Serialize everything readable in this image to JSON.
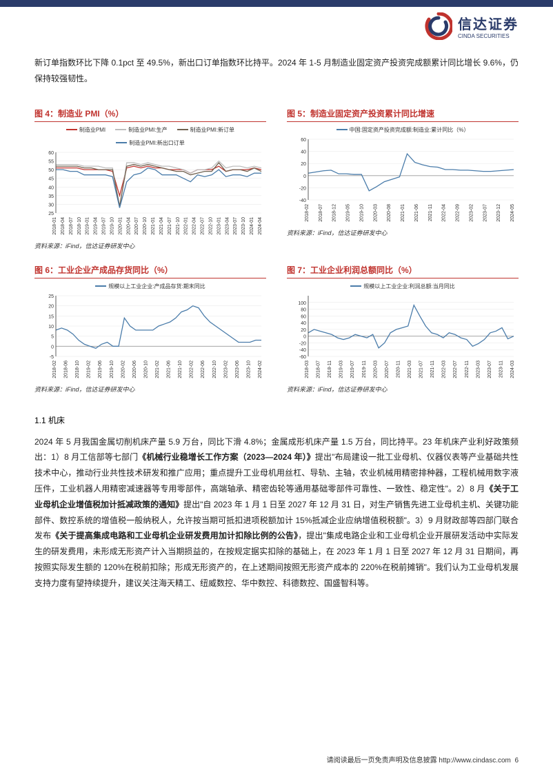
{
  "header": {
    "logo_cn": "信达证券",
    "logo_en": "CINDA SECURITIES"
  },
  "intro_para": "新订单指数环比下降 0.1pct 至 49.5%，新出口订单指数环比持平。2024 年 1-5 月制造业固定资产投资完成额累计同比增长 9.6%，仍保持较强韧性。",
  "charts": {
    "c4": {
      "title": "图 4：制造业 PMI（%）",
      "legend": [
        {
          "label": "制造业PMI",
          "color": "#c0332e"
        },
        {
          "label": "制造业PMI:生产",
          "color": "#bdbdbd"
        },
        {
          "label": "制造业PMI:新订单",
          "color": "#70614f"
        },
        {
          "label": "制造业PMI:新出口订单",
          "color": "#4a7caa"
        }
      ],
      "ylim": [
        25,
        60
      ],
      "ytick_step": 5,
      "x_labels": [
        "2018-01",
        "2018-04",
        "2018-07",
        "2018-10",
        "2019-01",
        "2019-04",
        "2019-07",
        "2019-10",
        "2020-01",
        "2020-04",
        "2020-07",
        "2020-10",
        "2021-01",
        "2021-04",
        "2021-07",
        "2021-10",
        "2022-01",
        "2022-04",
        "2022-07",
        "2022-10",
        "2023-01",
        "2023-04",
        "2023-07",
        "2023-10",
        "2024-01",
        "2024-04"
      ],
      "series": [
        {
          "color": "#c0332e",
          "values": [
            51,
            51,
            51,
            51,
            50,
            50,
            50,
            50,
            49,
            35,
            51,
            52,
            51,
            52,
            51,
            51,
            50,
            50,
            50,
            48,
            50,
            50,
            50,
            52,
            49,
            50,
            50,
            50,
            51,
            50
          ]
        },
        {
          "color": "#bdbdbd",
          "values": [
            53,
            53,
            53,
            53,
            52,
            52,
            52,
            51,
            51,
            28,
            54,
            54,
            53,
            54,
            53,
            52,
            52,
            51,
            50,
            48,
            50,
            50,
            51,
            55,
            51,
            52,
            52,
            51,
            52,
            51
          ]
        },
        {
          "color": "#70614f",
          "values": [
            52,
            52,
            52,
            52,
            51,
            51,
            50,
            50,
            50,
            29,
            52,
            53,
            52,
            53,
            52,
            51,
            50,
            49,
            49,
            47,
            48,
            49,
            49,
            54,
            49,
            50,
            50,
            49,
            51,
            49
          ]
        },
        {
          "color": "#4a7caa",
          "values": [
            50,
            50,
            49,
            49,
            47,
            47,
            47,
            47,
            46,
            28,
            43,
            47,
            48,
            51,
            50,
            47,
            47,
            47,
            45,
            43,
            47,
            46,
            47,
            50,
            46,
            47,
            47,
            46,
            48,
            48
          ]
        }
      ],
      "background_color": "#ffffff",
      "grid_color": "#e6e6e6",
      "axis_fontsize": 7,
      "source": "资料来源：iFind，信达证券研发中心"
    },
    "c5": {
      "title": "图 5：制造业固定资产投资累计同比增速",
      "legend": [
        {
          "label": "中国:固定资产投资完成额:制造业:累计同比（%）",
          "color": "#4a7caa"
        }
      ],
      "ylim": [
        -40,
        60
      ],
      "ytick_step": 20,
      "x_labels": [
        "2018-02",
        "2018-07",
        "2018-12",
        "2019-05",
        "2019-10",
        "2020-03",
        "2020-08",
        "2021-01",
        "2021-06",
        "2021-11",
        "2022-04",
        "2022-09",
        "2023-02",
        "2023-07",
        "2023-12",
        "2024-05"
      ],
      "series": [
        {
          "color": "#4a7caa",
          "values": [
            4,
            6,
            8,
            9,
            3,
            3,
            2,
            2,
            -25,
            -18,
            -10,
            -6,
            -2,
            36,
            22,
            18,
            15,
            14,
            10,
            10,
            9,
            9,
            8,
            7,
            7,
            8,
            9,
            10
          ]
        }
      ],
      "background_color": "#ffffff",
      "grid_color": "#e6e6e6",
      "axis_fontsize": 7,
      "source": "资料来源：iFind，信达证券研发中心"
    },
    "c6": {
      "title": "图 6：工业企业产成品存货同比（%）",
      "legend": [
        {
          "label": "规模以上工业企业:产成品存货:期末同比",
          "color": "#4a7caa"
        }
      ],
      "ylim": [
        -5,
        25
      ],
      "ytick_step": 5,
      "x_labels": [
        "2018-02",
        "2018-06",
        "2018-10",
        "2019-02",
        "2019-06",
        "2019-10",
        "2020-02",
        "2020-06",
        "2020-10",
        "2021-02",
        "2021-06",
        "2021-10",
        "2022-02",
        "2022-06",
        "2022-10",
        "2023-02",
        "2023-06",
        "2023-10",
        "2024-02"
      ],
      "series": [
        {
          "color": "#4a7caa",
          "values": [
            8,
            9,
            8,
            6,
            3,
            1,
            0,
            -1,
            1,
            2,
            0,
            0,
            14,
            10,
            8,
            8,
            8,
            8,
            10,
            11,
            12,
            14,
            17,
            18,
            20,
            19,
            15,
            12,
            10,
            8,
            6,
            4,
            2,
            2,
            2,
            3,
            3
          ]
        }
      ],
      "background_color": "#ffffff",
      "grid_color": "#e6e6e6",
      "axis_fontsize": 7,
      "source": "资料来源：iFind，信达证券研发中心"
    },
    "c7": {
      "title": "图 7：工业企业利润总额同比（%）",
      "legend": [
        {
          "label": "规模以上工业企业:利润总额:当月同比",
          "color": "#4a7caa"
        }
      ],
      "ylim": [
        -60,
        120
      ],
      "ylim2": 100,
      "ytick_values": [
        -60,
        -40,
        -20,
        0,
        20,
        40,
        60,
        80,
        100
      ],
      "x_labels": [
        "2018-03",
        "2018-07",
        "2018-11",
        "2019-03",
        "2019-07",
        "2019-11",
        "2020-03",
        "2020-07",
        "2020-11",
        "2021-03",
        "2021-07",
        "2021-11",
        "2022-03",
        "2022-07",
        "2022-11",
        "2023-03",
        "2023-07",
        "2023-11",
        "2024-03"
      ],
      "series": [
        {
          "color": "#4a7caa",
          "values": [
            10,
            20,
            15,
            10,
            5,
            -5,
            -10,
            -5,
            5,
            0,
            -5,
            5,
            -35,
            -20,
            10,
            20,
            25,
            30,
            92,
            60,
            30,
            10,
            5,
            -5,
            10,
            5,
            -5,
            -10,
            -30,
            -22,
            -10,
            10,
            15,
            25,
            -8,
            0
          ]
        }
      ],
      "background_color": "#ffffff",
      "grid_color": "#e6e6e6",
      "axis_fontsize": 7,
      "source": "资料来源：iFind，信达证券研发中心"
    }
  },
  "section": {
    "num": "1.1 机床",
    "body_parts": [
      {
        "t": "plain",
        "v": "2024 年 5 月我国金属切削机床产量 5.9 万台，同比下滑 4.8%；金属成形机床产量 1.5 万台，同比持平。23 年机床产业利好政策频出：1）8 月工信部等七部门"
      },
      {
        "t": "bold",
        "v": "《机械行业稳增长工作方案（2023—2024 年）》"
      },
      {
        "t": "plain",
        "v": "提出\"布局建设一批工业母机、仪器仪表等产业基础共性技术中心，推动行业共性技术研发和推广应用；重点提升工业母机用丝杠、导轨、主轴，农业机械用精密排种器，工程机械用数字液压件，工业机器人用精密减速器等专用零部件，高端轴承、精密齿轮等通用基础零部件可靠性、一致性、稳定性\"。2）8 月"
      },
      {
        "t": "bold",
        "v": "《关于工业母机企业增值税加计抵减政策的通知》"
      },
      {
        "t": "plain",
        "v": "提出\"自 2023 年 1 月 1 日至 2027 年 12 月 31 日，对生产销售先进工业母机主机、关键功能部件、数控系统的增值税一般纳税人，允许按当期可抵扣进项税额加计 15%抵减企业应纳增值税税额\"。3）9 月财政部等四部门联合发布"
      },
      {
        "t": "bold",
        "v": "《关于提高集成电路和工业母机企业研发费用加计扣除比例的公告》"
      },
      {
        "t": "plain",
        "v": "，提出\"集成电路企业和工业母机企业开展研发活动中实际发生的研发费用，未形成无形资产计入当期损益的，在按规定据实扣除的基础上，在 2023 年 1 月 1 日至 2027 年 12 月 31 日期间，再按照实际发生额的 120%在税前扣除；形成无形资产的，在上述期间按照无形资产成本的 220%在税前摊销\"。我们认为工业母机发展支持力度有望持续提升，建议关注海天精工、纽威数控、华中数控、科德数控、国盛智科等。"
      }
    ]
  },
  "footer": {
    "text": "请阅读最后一页免责声明及信息披露 http://www.cindasc.com",
    "page": "6"
  }
}
